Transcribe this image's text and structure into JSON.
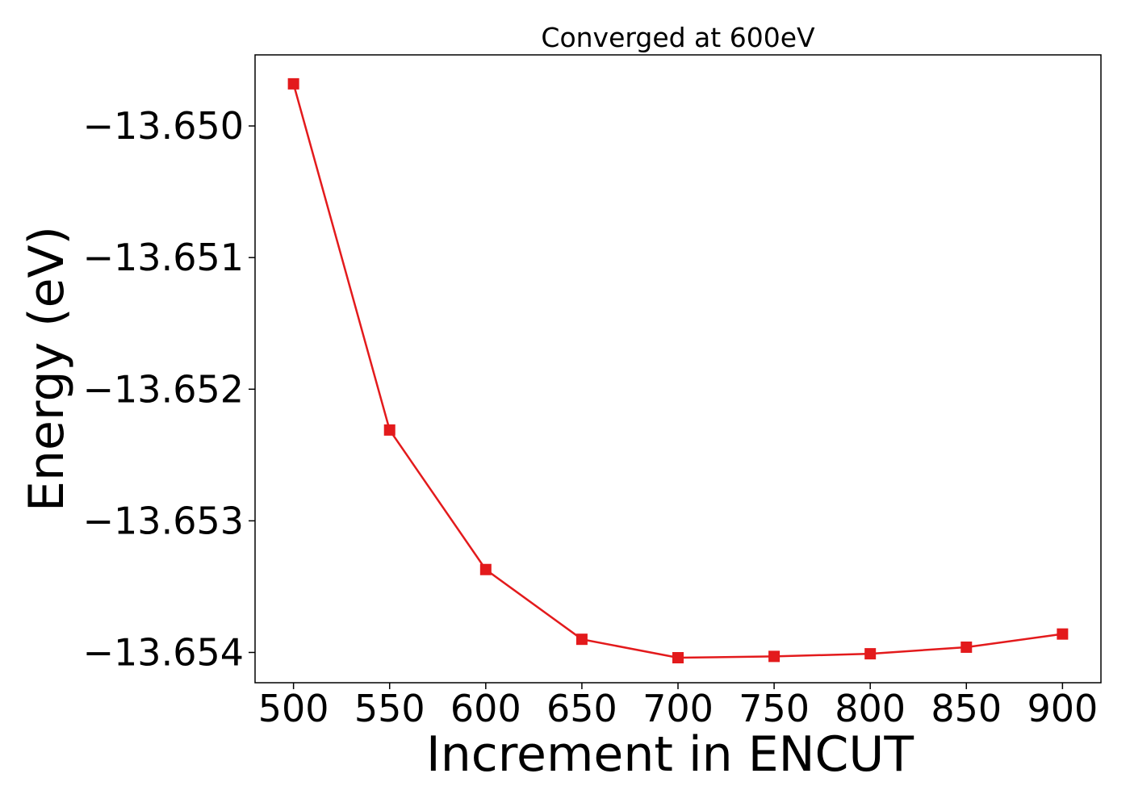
{
  "chart_data": {
    "type": "line",
    "title": "Converged at 600eV",
    "xlabel": "Increment in ENCUT",
    "ylabel": "Energy (eV)",
    "x": [
      500,
      550,
      600,
      650,
      700,
      750,
      800,
      850,
      900
    ],
    "series": [
      {
        "values": [
          -13.64968,
          -13.65231,
          -13.65337,
          -13.6539,
          -13.65404,
          -13.65403,
          -13.65401,
          -13.65396,
          -13.65386
        ],
        "color": "#e31a1c",
        "marker": "square"
      }
    ],
    "xticks": [
      500,
      550,
      600,
      650,
      700,
      750,
      800,
      850,
      900
    ],
    "xtick_labels": [
      "500",
      "550",
      "600",
      "650",
      "700",
      "750",
      "800",
      "850",
      "900"
    ],
    "yticks": [
      -13.65,
      -13.651,
      -13.652,
      -13.653,
      -13.654
    ],
    "ytick_labels": [
      "−13.650",
      "−13.651",
      "−13.652",
      "−13.653",
      "−13.654"
    ],
    "xlim": [
      480,
      920
    ],
    "ylim": [
      -13.65423,
      -13.64946
    ],
    "grid": false,
    "legend": "none"
  }
}
